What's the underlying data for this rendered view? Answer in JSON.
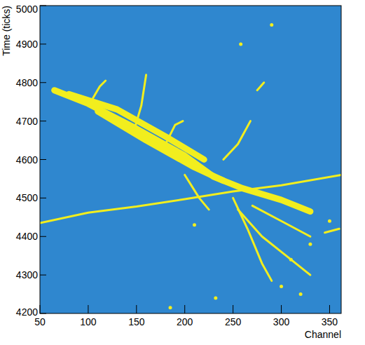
{
  "chart_data": {
    "type": "line",
    "x_label": "Channel",
    "y_label": "Time (ticks)",
    "xlim": [
      50,
      362
    ],
    "ylim": [
      4200,
      5000
    ],
    "xticks": [
      50,
      100,
      150,
      200,
      250,
      300,
      350
    ],
    "yticks": [
      4200,
      4300,
      4400,
      4500,
      4600,
      4700,
      4800,
      4900,
      5000
    ],
    "background": "#2f87cf",
    "series": [
      {
        "type": "line",
        "line_style": "solid",
        "color": "#f2ee1e",
        "x": [
          50,
          100,
          150,
          200,
          250,
          300,
          362
        ],
        "values": [
          4435,
          4462,
          4478,
          4497,
          4517,
          4533,
          4560
        ]
      },
      {
        "type": "line",
        "line_style": "thick",
        "color": "#f2ee1e",
        "x": [
          65,
          100,
          150,
          200,
          230,
          260,
          300,
          330
        ],
        "values": [
          4780,
          4745,
          4680,
          4610,
          4555,
          4525,
          4495,
          4465
        ]
      },
      {
        "type": "line",
        "line_style": "thick",
        "color": "#f2ee1e",
        "x": [
          80,
          130,
          180,
          220
        ],
        "values": [
          4770,
          4730,
          4660,
          4600
        ]
      },
      {
        "type": "line",
        "line_style": "thick",
        "color": "#f2ee1e",
        "x": [
          110,
          160,
          210,
          240
        ],
        "values": [
          4725,
          4650,
          4580,
          4545
        ]
      },
      {
        "type": "line",
        "line_style": "solid",
        "color": "#f2ee1e",
        "x": [
          148,
          155,
          160
        ],
        "values": [
          4680,
          4740,
          4820
        ]
      },
      {
        "type": "line",
        "line_style": "solid",
        "color": "#f2ee1e",
        "x": [
          105,
          112,
          118
        ],
        "values": [
          4760,
          4790,
          4805
        ]
      },
      {
        "type": "line",
        "line_style": "solid",
        "color": "#f2ee1e",
        "x": [
          240,
          255,
          268
        ],
        "values": [
          4600,
          4640,
          4700
        ]
      },
      {
        "type": "line",
        "line_style": "solid",
        "color": "#f2ee1e",
        "x": [
          250,
          265,
          280,
          290
        ],
        "values": [
          4500,
          4420,
          4330,
          4285
        ]
      },
      {
        "type": "line",
        "line_style": "solid",
        "color": "#f2ee1e",
        "x": [
          255,
          280,
          305,
          330
        ],
        "values": [
          4470,
          4400,
          4350,
          4300
        ]
      },
      {
        "type": "line",
        "line_style": "solid",
        "color": "#f2ee1e",
        "x": [
          270,
          300,
          330
        ],
        "values": [
          4480,
          4440,
          4400
        ]
      },
      {
        "type": "line",
        "line_style": "solid",
        "color": "#f2ee1e",
        "x": [
          180,
          190,
          198
        ],
        "values": [
          4640,
          4690,
          4700
        ]
      },
      {
        "type": "line",
        "line_style": "solid",
        "color": "#f2ee1e",
        "x": [
          200,
          215,
          225
        ],
        "values": [
          4560,
          4500,
          4470
        ]
      },
      {
        "type": "line",
        "line_style": "solid",
        "color": "#f2ee1e",
        "x": [
          345,
          360
        ],
        "values": [
          4410,
          4420
        ]
      },
      {
        "type": "line",
        "line_style": "solid",
        "color": "#f2ee1e",
        "x": [
          275,
          282
        ],
        "values": [
          4780,
          4800
        ]
      },
      {
        "type": "scatter",
        "marker": "circle",
        "color": "#f2ee1e",
        "x": [
          290,
          300,
          320,
          258,
          185,
          210,
          330,
          310,
          232,
          350
        ],
        "values": [
          4950,
          4270,
          4250,
          4900,
          4215,
          4430,
          4380,
          4340,
          4240,
          4440
        ]
      }
    ]
  }
}
